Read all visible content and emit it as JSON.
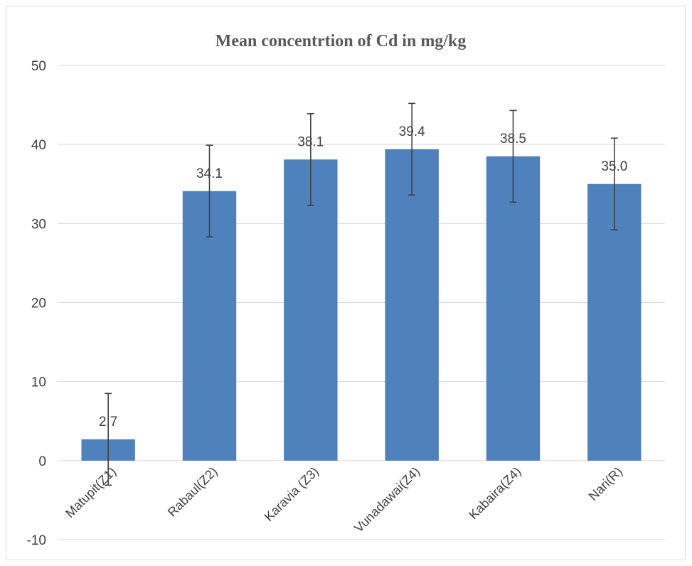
{
  "chart_data": {
    "type": "bar",
    "title": "Mean concentrtion of Cd in mg/kg",
    "xlabel": "",
    "ylabel": "",
    "categories": [
      "Matupit(Z1)",
      "Rabaul(Z2)",
      "Karavia (Z3)",
      "Vunadawai(Z4)",
      "Kabaira(Z4)",
      "Nari(R)"
    ],
    "values": [
      2.7,
      34.1,
      38.1,
      39.4,
      38.5,
      35.0
    ],
    "data_labels": [
      "2.7",
      "34.1",
      "38.1",
      "39.4",
      "38.5",
      "35.0"
    ],
    "error_bars": [
      5.8,
      5.8,
      5.8,
      5.8,
      5.8,
      5.8
    ],
    "ylim": [
      -10,
      50
    ],
    "yticks": [
      "-10",
      "0",
      "10",
      "20",
      "30",
      "40",
      "50"
    ],
    "yticks_values": [
      -10,
      0,
      10,
      20,
      30,
      40,
      50
    ],
    "grid": true,
    "legend": "none",
    "bar_color": "#4f81bd"
  }
}
